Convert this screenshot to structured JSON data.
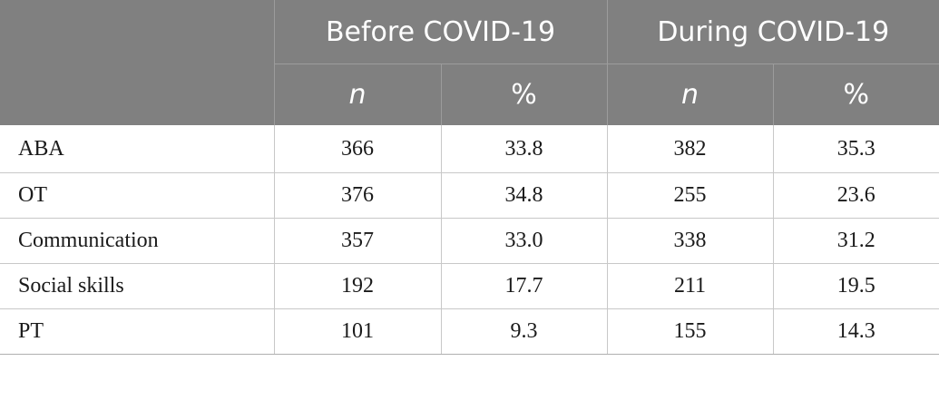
{
  "table": {
    "headers": {
      "groups": [
        "Before COVID-19",
        "During COVID-19"
      ],
      "sub": [
        "n",
        "%",
        "n",
        "%"
      ]
    },
    "rows": [
      {
        "label": "ABA",
        "before_n": "366",
        "before_pct": "33.8",
        "during_n": "382",
        "during_pct": "35.3"
      },
      {
        "label": "OT",
        "before_n": "376",
        "before_pct": "34.8",
        "during_n": "255",
        "during_pct": "23.6"
      },
      {
        "label": "Communication",
        "before_n": "357",
        "before_pct": "33.0",
        "during_n": "338",
        "during_pct": "31.2"
      },
      {
        "label": "Social skills",
        "before_n": "192",
        "before_pct": "17.7",
        "during_n": "211",
        "during_pct": "19.5"
      },
      {
        "label": "PT",
        "before_n": "101",
        "before_pct": "9.3",
        "during_n": "155",
        "during_pct": "14.3"
      }
    ]
  }
}
